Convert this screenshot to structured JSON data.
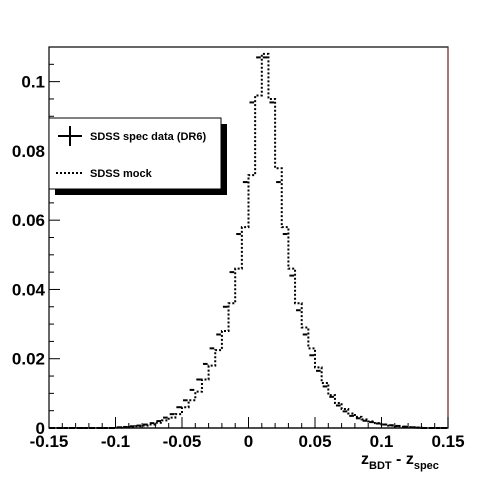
{
  "chart_data": {
    "type": "histogram",
    "title": "",
    "xlabel": {
      "main": "z",
      "sub1": "BDT",
      "mid": " - z",
      "sub2": "spec"
    },
    "ylabel": "",
    "xlim": [
      -0.15,
      0.15
    ],
    "ylim": [
      0,
      0.11
    ],
    "x_ticks": [
      -0.15,
      -0.1,
      -0.05,
      0,
      0.05,
      0.1,
      0.15
    ],
    "x_tick_labels": [
      "-0.15",
      "-0.1",
      "-0.05",
      "0",
      "0.05",
      "0.1",
      "0.15"
    ],
    "y_ticks": [
      0,
      0.02,
      0.04,
      0.06,
      0.08,
      0.1
    ],
    "y_tick_labels": [
      "0",
      "0.02",
      "0.04",
      "0.06",
      "0.08",
      "0.1"
    ],
    "bin_width": 0.005,
    "bin_edges_start": -0.15,
    "legend": {
      "position": "top-left",
      "entries": [
        {
          "label": "SDSS spec data (DR6)",
          "style": "points-with-error-bars"
        },
        {
          "label": "SDSS mock",
          "style": "dotted-step-line"
        }
      ]
    },
    "series": [
      {
        "name": "SDSS spec data (DR6)",
        "style": "points",
        "values": [
          0,
          0,
          0,
          0,
          0,
          0,
          0,
          0,
          0,
          0,
          0.0002,
          0.0003,
          0.0005,
          0.0007,
          0.001,
          0.0014,
          0.002,
          0.003,
          0.004,
          0.006,
          0.008,
          0.011,
          0.014,
          0.0185,
          0.023,
          0.027,
          0.035,
          0.045,
          0.056,
          0.071,
          0.094,
          0.107,
          0.107,
          0.094,
          0.071,
          0.056,
          0.044,
          0.034,
          0.027,
          0.021,
          0.0165,
          0.012,
          0.009,
          0.0065,
          0.0048,
          0.0035,
          0.0028,
          0.0021,
          0.0017,
          0.0013,
          0.001,
          0.0008,
          0.0006,
          0.0004,
          0.0002,
          0.0001,
          0,
          0,
          0,
          0
        ]
      },
      {
        "name": "SDSS mock",
        "style": "dotted-step",
        "values": [
          0,
          0,
          0,
          0,
          0,
          0,
          0,
          0,
          0,
          0,
          0.0001,
          0.0002,
          0.0003,
          0.0005,
          0.0007,
          0.001,
          0.0015,
          0.0022,
          0.003,
          0.004,
          0.006,
          0.008,
          0.0105,
          0.014,
          0.018,
          0.0225,
          0.028,
          0.036,
          0.046,
          0.058,
          0.073,
          0.096,
          0.108,
          0.095,
          0.075,
          0.058,
          0.046,
          0.036,
          0.029,
          0.023,
          0.0175,
          0.013,
          0.0095,
          0.0072,
          0.0055,
          0.0042,
          0.0032,
          0.0025,
          0.0019,
          0.0014,
          0.001,
          0.0007,
          0.0005,
          0.0003,
          0.0002,
          0.0001,
          0,
          0,
          0,
          0
        ]
      }
    ]
  }
}
